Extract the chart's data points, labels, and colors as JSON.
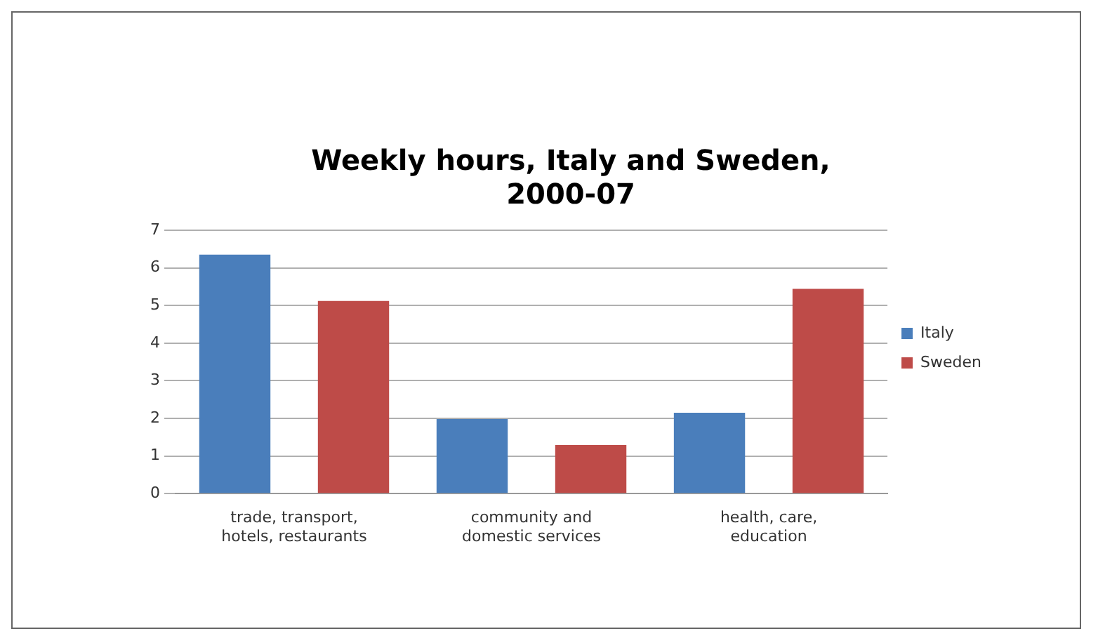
{
  "chart_data": {
    "type": "bar",
    "title": "Weekly hours, Italy and Sweden, 2000-07",
    "categories": [
      "trade, transport, hotels, restaurants",
      "community and domestic services",
      "health, care, education"
    ],
    "series": [
      {
        "name": "Italy",
        "color": "#4a7ebb",
        "values": [
          6.35,
          1.98,
          2.15
        ]
      },
      {
        "name": "Sweden",
        "color": "#be4b48",
        "values": [
          5.12,
          1.29,
          5.44
        ]
      }
    ],
    "ylim": [
      0,
      7
    ],
    "yticks": [
      0,
      1,
      2,
      3,
      4,
      5,
      6,
      7
    ],
    "grid": "y",
    "legend": "right"
  }
}
